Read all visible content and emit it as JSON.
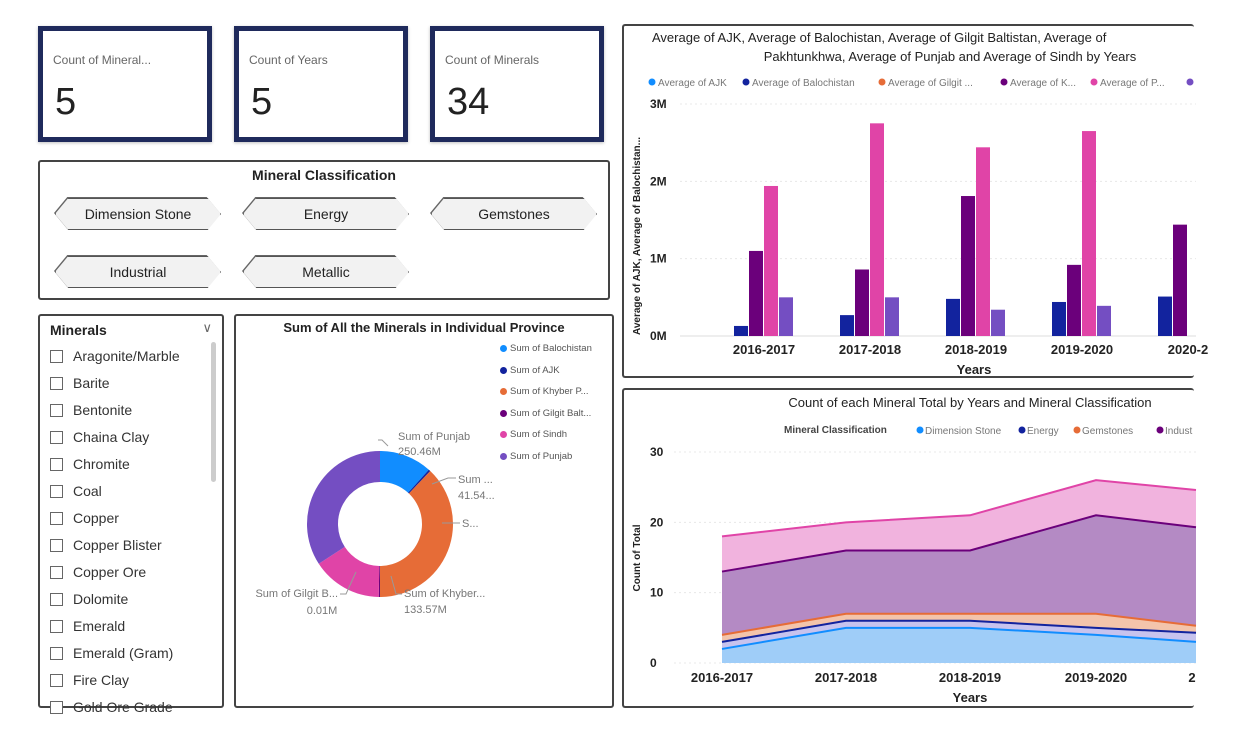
{
  "cards": [
    {
      "label": "Count of Mineral...",
      "value": "5"
    },
    {
      "label": "Count of Years",
      "value": "5"
    },
    {
      "label": "Count of Minerals",
      "value": "34"
    }
  ],
  "classification": {
    "title": "Mineral Classification",
    "buttons": [
      "Dimension Stone",
      "Energy",
      "Gemstones",
      "Industrial",
      "Metallic"
    ]
  },
  "minerals_slicer": {
    "title": "Minerals",
    "items": [
      "Aragonite/Marble",
      "Barite",
      "Bentonite",
      "Chaina Clay",
      "Chromite",
      "Coal",
      "Copper",
      "Copper Blister",
      "Copper Ore",
      "Dolomite",
      "Emerald",
      "Emerald (Gram)",
      "Fire Clay",
      "Gold Ore Grade"
    ]
  },
  "donut": {
    "title": "Sum of All the Minerals in Individual Province",
    "legend": [
      "Sum of Balochistan",
      "Sum of AJK",
      "Sum of Khyber P...",
      "Sum of Gilgit Balt...",
      "Sum of Sindh",
      "Sum of Punjab"
    ],
    "colors": [
      "#118dff",
      "#12239e",
      "#e66c37",
      "#6b007b",
      "#e044a7",
      "#744ec2"
    ],
    "labels": {
      "punjab_name": "Sum of Punjab",
      "punjab_value": "250.46M",
      "sum_name": "Sum ...",
      "sum_value": "41.54...",
      "s_name": "S...",
      "khyber_name": "Sum of Khyber...",
      "khyber_value": "133.57M",
      "gilgit_name": "Sum of Gilgit B...",
      "gilgit_value": "0.01M"
    }
  },
  "chart_data": [
    {
      "type": "bar",
      "title_line1": "Average of AJK, Average of Balochistan, Average of Gilgit Baltistan, Average of",
      "title_line2": "Pakhtunkhwa, Average of Punjab and Average of Sindh by Years",
      "xlabel": "Years",
      "ylabel": "Average of AJK, Average of Balochistan...",
      "categories": [
        "2016-2017",
        "2017-2018",
        "2018-2019",
        "2019-2020",
        "2020-2"
      ],
      "yticks": [
        "0M",
        "1M",
        "2M",
        "3M"
      ],
      "ylim": [
        0,
        3000000
      ],
      "legend": [
        "Average of AJK",
        "Average of Balochistan",
        "Average of Gilgit ...",
        "Average of K...",
        "Average of P..."
      ],
      "series": [
        {
          "name": "Average of AJK",
          "color": "#118dff",
          "values": [
            0,
            0,
            0,
            0,
            0
          ]
        },
        {
          "name": "Average of Balochistan",
          "color": "#12239e",
          "values": [
            130000,
            270000,
            480000,
            440000,
            510000
          ]
        },
        {
          "name": "Average of Gilgit ...",
          "color": "#e66c37",
          "values": [
            0,
            0,
            0,
            0,
            0
          ]
        },
        {
          "name": "Average of K...",
          "color": "#6b007b",
          "values": [
            1100000,
            860000,
            1810000,
            920000,
            1440000
          ]
        },
        {
          "name": "Average of P...",
          "color": "#e044a7",
          "values": [
            1940000,
            2750000,
            2440000,
            2650000,
            0
          ]
        },
        {
          "name": "",
          "color": "#744ec2",
          "values": [
            500000,
            500000,
            340000,
            390000,
            0
          ]
        }
      ]
    },
    {
      "type": "area",
      "title": "Count of each Mineral Total by Years and Mineral Classification",
      "legend_title": "Mineral Classification",
      "legend": [
        "Dimension Stone",
        "Energy",
        "Gemstones",
        "Indust"
      ],
      "xlabel": "Years",
      "ylabel": "Count of Total",
      "categories": [
        "2016-2017",
        "2017-2018",
        "2018-2019",
        "2019-2020",
        "2"
      ],
      "yticks": [
        "0",
        "10",
        "20",
        "30"
      ],
      "ylim": [
        0,
        30
      ],
      "stack_tops": [
        {
          "color": "#118dff",
          "fill": "#9fcdf8",
          "values": [
            2,
            5,
            5,
            4,
            3
          ]
        },
        {
          "color": "#12239e",
          "fill": "#c7c3ee",
          "values": [
            3,
            6,
            6,
            5,
            4.3
          ]
        },
        {
          "color": "#e66c37",
          "fill": "#f3c4ab",
          "values": [
            4,
            7,
            7,
            7,
            5.3
          ]
        },
        {
          "color": "#6b007b",
          "fill": "#b48ac4",
          "values": [
            13,
            16,
            16,
            21,
            19.3
          ]
        },
        {
          "color": "#e044a7",
          "fill": "#f1b3de",
          "values": [
            18,
            20,
            21,
            26,
            24.6
          ]
        }
      ]
    }
  ]
}
